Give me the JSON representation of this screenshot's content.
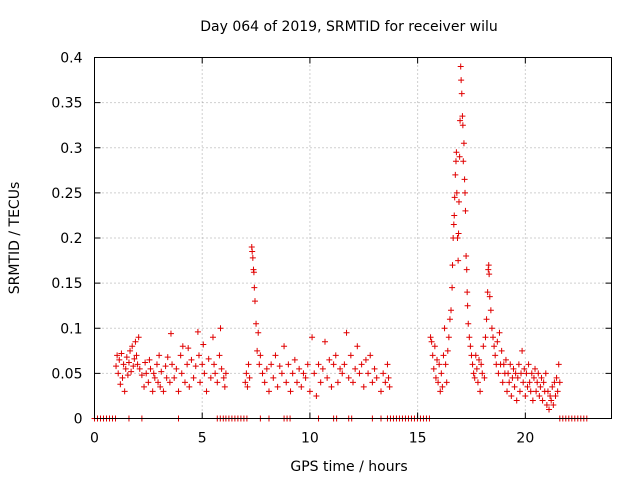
{
  "chart_data": {
    "type": "scatter",
    "title": "Day 064 of 2019, SRMTID for receiver wilu",
    "xlabel": "GPS time / hours",
    "ylabel": "SRMTID / TECUs",
    "xlim": [
      0,
      24
    ],
    "ylim": [
      0,
      0.4
    ],
    "xticks": [
      "0",
      "5",
      "10",
      "15",
      "20"
    ],
    "xtick_values": [
      0,
      5,
      10,
      15,
      20
    ],
    "yticks": [
      "0",
      "0.05",
      "0.1",
      "0.15",
      "0.2",
      "0.25",
      "0.3",
      "0.35",
      "0.4"
    ],
    "ytick_values": [
      0,
      0.05,
      0.1,
      0.15,
      0.2,
      0.25,
      0.3,
      0.35,
      0.4
    ],
    "grid": true,
    "marker": "+",
    "series": [
      {
        "name": "SRMTID",
        "color": "#e00000",
        "points": [
          [
            1.0,
            0.058
          ],
          [
            1.05,
            0.07
          ],
          [
            1.1,
            0.05
          ],
          [
            1.15,
            0.065
          ],
          [
            1.2,
            0.038
          ],
          [
            1.25,
            0.072
          ],
          [
            1.3,
            0.045
          ],
          [
            1.35,
            0.06
          ],
          [
            1.4,
            0.03
          ],
          [
            1.45,
            0.055
          ],
          [
            1.5,
            0.068
          ],
          [
            1.55,
            0.048
          ],
          [
            1.6,
            0.062
          ],
          [
            1.65,
            0.075
          ],
          [
            1.7,
            0.052
          ],
          [
            1.75,
            0.08
          ],
          [
            1.8,
            0.058
          ],
          [
            1.85,
            0.066
          ],
          [
            1.9,
            0.085
          ],
          [
            1.95,
            0.07
          ],
          [
            2.0,
            0.06
          ],
          [
            2.05,
            0.09
          ],
          [
            2.1,
            0.055
          ],
          [
            2.2,
            0.048
          ],
          [
            2.3,
            0.035
          ],
          [
            2.35,
            0.062
          ],
          [
            2.4,
            0.05
          ],
          [
            2.5,
            0.04
          ],
          [
            2.55,
            0.065
          ],
          [
            2.6,
            0.055
          ],
          [
            2.7,
            0.03
          ],
          [
            2.75,
            0.05
          ],
          [
            2.8,
            0.045
          ],
          [
            2.9,
            0.06
          ],
          [
            2.95,
            0.04
          ],
          [
            3.0,
            0.07
          ],
          [
            3.05,
            0.035
          ],
          [
            3.1,
            0.052
          ],
          [
            3.2,
            0.03
          ],
          [
            3.3,
            0.058
          ],
          [
            3.35,
            0.045
          ],
          [
            3.4,
            0.068
          ],
          [
            3.5,
            0.04
          ],
          [
            3.55,
            0.094
          ],
          [
            3.6,
            0.06
          ],
          [
            3.7,
            0.045
          ],
          [
            3.8,
            0.055
          ],
          [
            3.9,
            0.03
          ],
          [
            4.0,
            0.07
          ],
          [
            4.05,
            0.05
          ],
          [
            4.1,
            0.08
          ],
          [
            4.2,
            0.04
          ],
          [
            4.3,
            0.06
          ],
          [
            4.35,
            0.078
          ],
          [
            4.4,
            0.035
          ],
          [
            4.5,
            0.065
          ],
          [
            4.6,
            0.045
          ],
          [
            4.7,
            0.058
          ],
          [
            4.8,
            0.096
          ],
          [
            4.85,
            0.07
          ],
          [
            4.9,
            0.04
          ],
          [
            5.0,
            0.06
          ],
          [
            5.05,
            0.082
          ],
          [
            5.1,
            0.05
          ],
          [
            5.2,
            0.03
          ],
          [
            5.3,
            0.066
          ],
          [
            5.4,
            0.045
          ],
          [
            5.5,
            0.09
          ],
          [
            5.55,
            0.06
          ],
          [
            5.6,
            0.05
          ],
          [
            5.7,
            0.04
          ],
          [
            5.8,
            0.07
          ],
          [
            5.85,
            0.1
          ],
          [
            5.9,
            0.055
          ],
          [
            6.0,
            0.045
          ],
          [
            6.05,
            0.035
          ],
          [
            6.1,
            0.05
          ],
          [
            7.0,
            0.04
          ],
          [
            7.05,
            0.05
          ],
          [
            7.1,
            0.035
          ],
          [
            7.15,
            0.06
          ],
          [
            7.2,
            0.045
          ],
          [
            7.3,
            0.19
          ],
          [
            7.32,
            0.185
          ],
          [
            7.35,
            0.178
          ],
          [
            7.38,
            0.165
          ],
          [
            7.4,
            0.162
          ],
          [
            7.42,
            0.145
          ],
          [
            7.45,
            0.13
          ],
          [
            7.5,
            0.105
          ],
          [
            7.55,
            0.075
          ],
          [
            7.6,
            0.095
          ],
          [
            7.65,
            0.06
          ],
          [
            7.7,
            0.07
          ],
          [
            7.8,
            0.05
          ],
          [
            7.9,
            0.04
          ],
          [
            8.0,
            0.055
          ],
          [
            8.1,
            0.03
          ],
          [
            8.2,
            0.06
          ],
          [
            8.3,
            0.045
          ],
          [
            8.4,
            0.07
          ],
          [
            8.5,
            0.035
          ],
          [
            8.6,
            0.058
          ],
          [
            8.7,
            0.05
          ],
          [
            8.8,
            0.08
          ],
          [
            8.9,
            0.04
          ],
          [
            9.0,
            0.06
          ],
          [
            9.1,
            0.03
          ],
          [
            9.2,
            0.05
          ],
          [
            9.3,
            0.065
          ],
          [
            9.4,
            0.04
          ],
          [
            9.5,
            0.055
          ],
          [
            9.6,
            0.035
          ],
          [
            9.7,
            0.05
          ],
          [
            9.8,
            0.045
          ],
          [
            9.9,
            0.06
          ],
          [
            10.0,
            0.03
          ],
          [
            10.1,
            0.09
          ],
          [
            10.2,
            0.05
          ],
          [
            10.3,
            0.025
          ],
          [
            10.4,
            0.06
          ],
          [
            10.5,
            0.04
          ],
          [
            10.6,
            0.055
          ],
          [
            10.7,
            0.085
          ],
          [
            10.8,
            0.045
          ],
          [
            10.9,
            0.065
          ],
          [
            11.0,
            0.035
          ],
          [
            11.1,
            0.06
          ],
          [
            11.2,
            0.07
          ],
          [
            11.3,
            0.04
          ],
          [
            11.4,
            0.055
          ],
          [
            11.5,
            0.05
          ],
          [
            11.6,
            0.06
          ],
          [
            11.7,
            0.095
          ],
          [
            11.8,
            0.045
          ],
          [
            11.9,
            0.07
          ],
          [
            12.0,
            0.04
          ],
          [
            12.1,
            0.055
          ],
          [
            12.2,
            0.08
          ],
          [
            12.3,
            0.05
          ],
          [
            12.4,
            0.06
          ],
          [
            12.5,
            0.035
          ],
          [
            12.6,
            0.065
          ],
          [
            12.7,
            0.05
          ],
          [
            12.8,
            0.07
          ],
          [
            12.9,
            0.04
          ],
          [
            13.0,
            0.055
          ],
          [
            13.1,
            0.045
          ],
          [
            13.3,
            0.03
          ],
          [
            13.4,
            0.05
          ],
          [
            13.5,
            0.04
          ],
          [
            13.6,
            0.06
          ],
          [
            13.65,
            0.045
          ],
          [
            13.7,
            0.035
          ],
          [
            15.6,
            0.09
          ],
          [
            15.65,
            0.085
          ],
          [
            15.7,
            0.07
          ],
          [
            15.75,
            0.055
          ],
          [
            15.8,
            0.08
          ],
          [
            15.85,
            0.045
          ],
          [
            15.9,
            0.065
          ],
          [
            15.95,
            0.04
          ],
          [
            16.0,
            0.06
          ],
          [
            16.05,
            0.03
          ],
          [
            16.1,
            0.05
          ],
          [
            16.15,
            0.035
          ],
          [
            16.2,
            0.07
          ],
          [
            16.25,
            0.1
          ],
          [
            16.3,
            0.06
          ],
          [
            16.35,
            0.04
          ],
          [
            16.4,
            0.075
          ],
          [
            16.45,
            0.09
          ],
          [
            16.5,
            0.11
          ],
          [
            16.55,
            0.12
          ],
          [
            16.6,
            0.145
          ],
          [
            16.62,
            0.17
          ],
          [
            16.65,
            0.2
          ],
          [
            16.68,
            0.215
          ],
          [
            16.7,
            0.225
          ],
          [
            16.72,
            0.245
          ],
          [
            16.75,
            0.27
          ],
          [
            16.78,
            0.285
          ],
          [
            16.8,
            0.295
          ],
          [
            16.82,
            0.25
          ],
          [
            16.85,
            0.2
          ],
          [
            16.88,
            0.175
          ],
          [
            16.9,
            0.205
          ],
          [
            16.92,
            0.24
          ],
          [
            16.95,
            0.29
          ],
          [
            16.97,
            0.33
          ],
          [
            17.0,
            0.39
          ],
          [
            17.02,
            0.375
          ],
          [
            17.05,
            0.36
          ],
          [
            17.08,
            0.335
          ],
          [
            17.1,
            0.325
          ],
          [
            17.12,
            0.285
          ],
          [
            17.15,
            0.305
          ],
          [
            17.18,
            0.265
          ],
          [
            17.2,
            0.25
          ],
          [
            17.22,
            0.23
          ],
          [
            17.25,
            0.18
          ],
          [
            17.28,
            0.165
          ],
          [
            17.3,
            0.14
          ],
          [
            17.32,
            0.125
          ],
          [
            17.35,
            0.105
          ],
          [
            17.4,
            0.09
          ],
          [
            17.45,
            0.08
          ],
          [
            17.5,
            0.07
          ],
          [
            17.55,
            0.06
          ],
          [
            17.6,
            0.05
          ],
          [
            17.65,
            0.045
          ],
          [
            17.7,
            0.07
          ],
          [
            17.75,
            0.055
          ],
          [
            17.8,
            0.04
          ],
          [
            17.85,
            0.065
          ],
          [
            17.9,
            0.03
          ],
          [
            17.95,
            0.06
          ],
          [
            18.0,
            0.05
          ],
          [
            18.05,
            0.08
          ],
          [
            18.1,
            0.045
          ],
          [
            18.15,
            0.09
          ],
          [
            18.2,
            0.11
          ],
          [
            18.25,
            0.14
          ],
          [
            18.28,
            0.165
          ],
          [
            18.3,
            0.17
          ],
          [
            18.32,
            0.16
          ],
          [
            18.35,
            0.135
          ],
          [
            18.4,
            0.12
          ],
          [
            18.45,
            0.1
          ],
          [
            18.5,
            0.09
          ],
          [
            18.55,
            0.08
          ],
          [
            18.6,
            0.07
          ],
          [
            18.65,
            0.06
          ],
          [
            18.7,
            0.085
          ],
          [
            18.75,
            0.05
          ],
          [
            18.8,
            0.095
          ],
          [
            18.85,
            0.06
          ],
          [
            18.9,
            0.075
          ],
          [
            18.95,
            0.04
          ],
          [
            19.0,
            0.06
          ],
          [
            19.05,
            0.05
          ],
          [
            19.1,
            0.065
          ],
          [
            19.15,
            0.03
          ],
          [
            19.2,
            0.05
          ],
          [
            19.25,
            0.04
          ],
          [
            19.3,
            0.06
          ],
          [
            19.35,
            0.025
          ],
          [
            19.4,
            0.045
          ],
          [
            19.45,
            0.055
          ],
          [
            19.5,
            0.035
          ],
          [
            19.55,
            0.05
          ],
          [
            19.6,
            0.02
          ],
          [
            19.65,
            0.045
          ],
          [
            19.7,
            0.06
          ],
          [
            19.75,
            0.03
          ],
          [
            19.8,
            0.05
          ],
          [
            19.85,
            0.075
          ],
          [
            19.9,
            0.04
          ],
          [
            19.95,
            0.055
          ],
          [
            20.0,
            0.025
          ],
          [
            20.05,
            0.05
          ],
          [
            20.1,
            0.035
          ],
          [
            20.15,
            0.06
          ],
          [
            20.2,
            0.04
          ],
          [
            20.25,
            0.03
          ],
          [
            20.3,
            0.05
          ],
          [
            20.35,
            0.02
          ],
          [
            20.4,
            0.045
          ],
          [
            20.45,
            0.055
          ],
          [
            20.5,
            0.03
          ],
          [
            20.55,
            0.04
          ],
          [
            20.6,
            0.05
          ],
          [
            20.65,
            0.025
          ],
          [
            20.7,
            0.035
          ],
          [
            20.75,
            0.045
          ],
          [
            20.8,
            0.02
          ],
          [
            20.85,
            0.04
          ],
          [
            20.9,
            0.03
          ],
          [
            20.95,
            0.05
          ],
          [
            21.0,
            0.015
          ],
          [
            21.05,
            0.03
          ],
          [
            21.1,
            0.01
          ],
          [
            21.15,
            0.025
          ],
          [
            21.2,
            0.02
          ],
          [
            21.25,
            0.035
          ],
          [
            21.3,
            0.015
          ],
          [
            21.35,
            0.04
          ],
          [
            21.4,
            0.025
          ],
          [
            21.45,
            0.045
          ],
          [
            21.5,
            0.03
          ],
          [
            21.55,
            0.06
          ],
          [
            21.6,
            0.04
          ]
        ]
      }
    ],
    "zero_band": [
      [
        0,
        1.0
      ],
      [
        1.6,
        1.7
      ],
      [
        2.2,
        2.3
      ],
      [
        3.9,
        4.0
      ],
      [
        5.7,
        6.0
      ],
      [
        6.1,
        7.1
      ],
      [
        7.7,
        7.8
      ],
      [
        8.1,
        8.2
      ],
      [
        8.8,
        9.1
      ],
      [
        10.4,
        10.5
      ],
      [
        11.1,
        11.3
      ],
      [
        11.8,
        12.0
      ],
      [
        12.9,
        13.0
      ],
      [
        13.3,
        13.4
      ],
      [
        13.6,
        15.6
      ],
      [
        21.6,
        22.9
      ]
    ]
  }
}
